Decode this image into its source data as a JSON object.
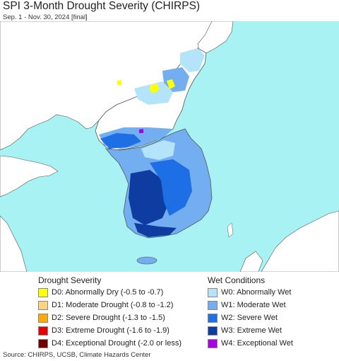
{
  "title": "SPI 3-Month Drought Severity (CHIRPS)",
  "subtitle": "Sep. 1 - Nov. 30, 2024 [final]",
  "drought_legend": {
    "heading": "Drought Severity",
    "items": [
      {
        "label": "D0: Abnormally Dry (-0.5 to -0.7)",
        "color": "#ffff00"
      },
      {
        "label": "D1: Moderate Drought (-0.8 to -1.2)",
        "color": "#fcd37f"
      },
      {
        "label": "D2: Severe Drought (-1.3 to -1.5)",
        "color": "#ffaa00"
      },
      {
        "label": "D3: Extreme Drought (-1.6 to -1.9)",
        "color": "#e60000"
      },
      {
        "label": "D4: Exceptional Drought (-2.0 or less)",
        "color": "#730000"
      }
    ]
  },
  "wet_legend": {
    "heading": "Wet Conditions",
    "items": [
      {
        "label": "W0: Abnormally Wet",
        "color": "#b4e4fa"
      },
      {
        "label": "W1: Moderate Wet",
        "color": "#73aef0"
      },
      {
        "label": "W2: Severe Wet",
        "color": "#1e6ee6"
      },
      {
        "label": "W3: Extreme Wet",
        "color": "#0f3ca0"
      },
      {
        "label": "W4: Exceptional Wet",
        "color": "#aa00e6"
      }
    ]
  },
  "source": "Source: CHIRPS, UCSB, Climate Hazards Center",
  "colors": {
    "sea": "#a8f2f4",
    "land": "#ffffff",
    "border": "#555555"
  }
}
